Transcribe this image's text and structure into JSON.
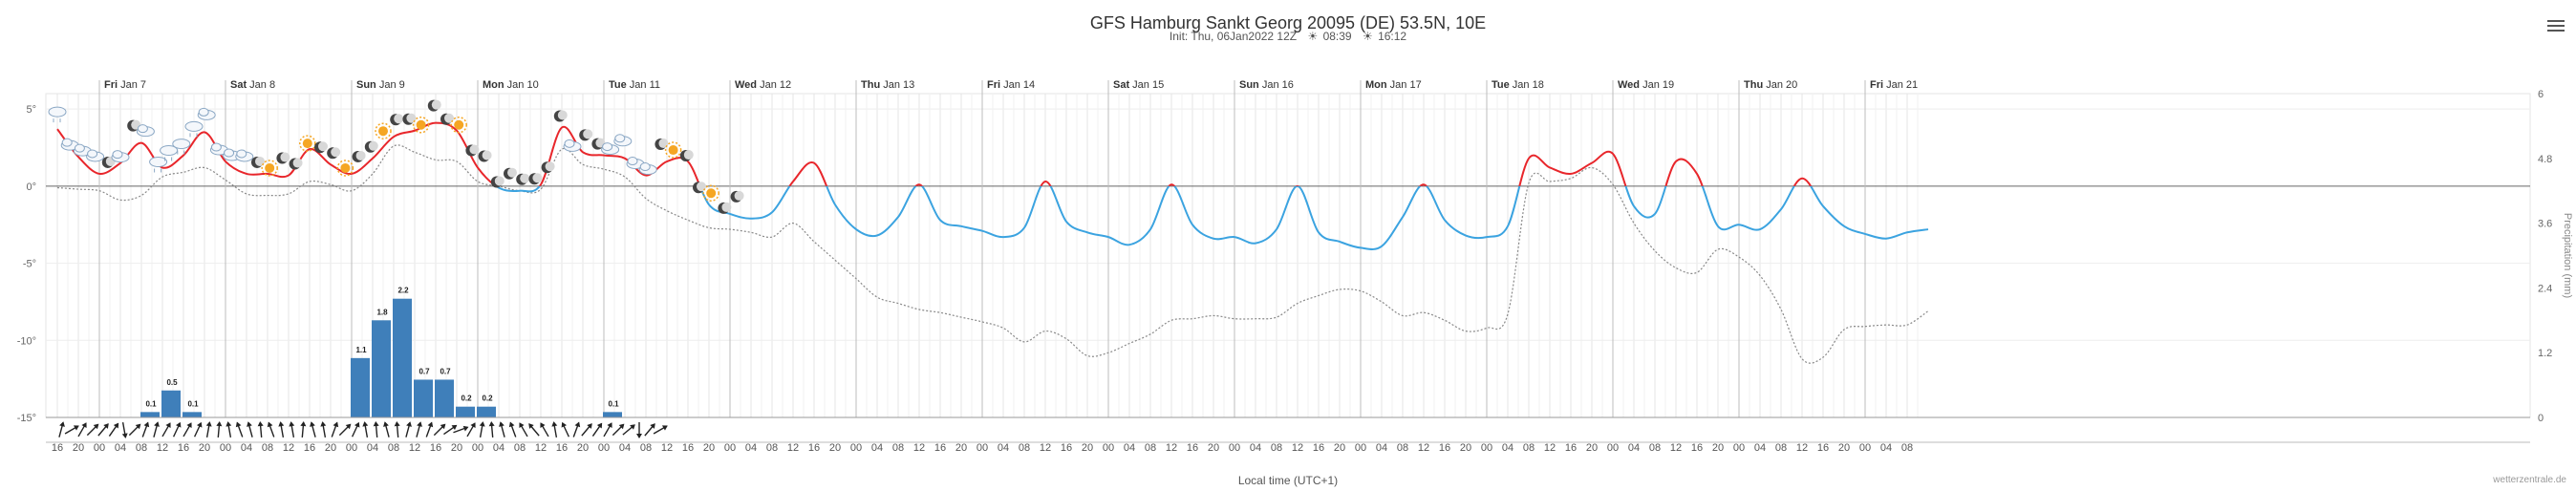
{
  "page": {
    "title": "GFS Hamburg Sankt Georg 20095 (DE) 53.5N, 10E",
    "init_label": "Init: Thu, 06Jan2022 12Z",
    "sunrise": "08:39",
    "sunset": "16:12",
    "xlabel": "Local time (UTC+1)",
    "credit": "wetterzentrale.de",
    "y2label": "Precipitation (mm)"
  },
  "colors": {
    "temp_above": "#e8262b",
    "temp_below": "#3ba3e0",
    "dewpoint": "#888888",
    "precip": "#3f7fba",
    "zero_line": "#666666",
    "grid": "#e4e4e4"
  },
  "chart_data": {
    "type": "line",
    "title": "GFS Hamburg Sankt Georg 20095 (DE) 53.5N, 10E",
    "xlabel": "Local time (UTC+1)",
    "ylabel": "",
    "ylim": [
      -15,
      6
    ],
    "y2lim": [
      0,
      6
    ],
    "yticks": [
      "5°",
      "0°",
      "-5°",
      "-10°",
      "-15°"
    ],
    "y2ticks": [
      "6",
      "4.8",
      "3.6",
      "2.4",
      "1.2",
      "0"
    ],
    "grid": true,
    "start_hour": 16,
    "step_hours": 4,
    "hour_labels": [
      "16",
      "20",
      "00",
      "04",
      "08",
      "12",
      "16",
      "20",
      "00",
      "04",
      "08",
      "12",
      "16",
      "20",
      "00",
      "04",
      "08",
      "12",
      "16",
      "20",
      "00",
      "04",
      "08",
      "12",
      "16",
      "20",
      "00",
      "04",
      "08",
      "12",
      "16",
      "20",
      "00",
      "04",
      "08",
      "12",
      "16",
      "20",
      "00",
      "04",
      "08",
      "12",
      "16",
      "20",
      "00",
      "04",
      "08",
      "12",
      "16",
      "20",
      "00",
      "04",
      "08",
      "12",
      "16",
      "20",
      "00",
      "04",
      "08",
      "12",
      "16",
      "20",
      "00",
      "04",
      "08",
      "12",
      "16",
      "20",
      "00",
      "04",
      "08",
      "12",
      "16",
      "20",
      "00",
      "04",
      "08",
      "12",
      "16",
      "20",
      "00",
      "04",
      "08",
      "12",
      "16",
      "20",
      "00",
      "04",
      "08"
    ],
    "days": [
      {
        "label": "Fri Jan 7",
        "hour_index": 2
      },
      {
        "label": "Sat Jan 8",
        "hour_index": 8
      },
      {
        "label": "Sun Jan 9",
        "hour_index": 14
      },
      {
        "label": "Mon Jan 10",
        "hour_index": 20
      },
      {
        "label": "Tue Jan 11",
        "hour_index": 26
      },
      {
        "label": "Wed Jan 12",
        "hour_index": 32
      },
      {
        "label": "Thu Jan 13",
        "hour_index": 38
      },
      {
        "label": "Fri Jan 14",
        "hour_index": 44
      },
      {
        "label": "Sat Jan 15",
        "hour_index": 50
      },
      {
        "label": "Sun Jan 16",
        "hour_index": 56
      },
      {
        "label": "Mon Jan 17",
        "hour_index": 62
      },
      {
        "label": "Tue Jan 18",
        "hour_index": 68
      },
      {
        "label": "Wed Jan 19",
        "hour_index": 74
      },
      {
        "label": "Thu Jan 20",
        "hour_index": 80
      },
      {
        "label": "Fri Jan 21",
        "hour_index": 86
      }
    ],
    "temperature": [
      [
        0,
        3.7
      ],
      [
        1,
        1.9
      ],
      [
        2,
        0.8
      ],
      [
        3,
        1.5
      ],
      [
        4,
        2.8
      ],
      [
        5,
        1.2
      ],
      [
        6,
        2.0
      ],
      [
        7,
        3.5
      ],
      [
        8,
        1.6
      ],
      [
        9,
        0.8
      ],
      [
        10,
        0.8
      ],
      [
        11,
        0.7
      ],
      [
        12,
        2.4
      ],
      [
        13,
        1.4
      ],
      [
        14,
        0.8
      ],
      [
        15,
        1.8
      ],
      [
        16,
        3.2
      ],
      [
        17,
        3.6
      ],
      [
        18,
        4.1
      ],
      [
        19,
        3.6
      ],
      [
        20,
        1.2
      ],
      [
        21,
        -0.1
      ],
      [
        22,
        -0.3
      ],
      [
        23,
        0.1
      ],
      [
        24,
        3.8
      ],
      [
        25,
        2.2
      ],
      [
        26,
        2.0
      ],
      [
        27,
        1.8
      ],
      [
        28,
        0.7
      ],
      [
        29,
        1.6
      ],
      [
        30,
        1.6
      ],
      [
        31,
        -1.2
      ],
      [
        32,
        -1.8
      ],
      [
        33,
        -2.1
      ],
      [
        34,
        -1.7
      ],
      [
        35,
        0.3
      ],
      [
        36,
        1.5
      ],
      [
        37,
        -1.2
      ],
      [
        38,
        -2.8
      ],
      [
        39,
        -3.2
      ],
      [
        40,
        -2.0
      ],
      [
        41,
        0.1
      ],
      [
        42,
        -2.2
      ],
      [
        43,
        -2.6
      ],
      [
        44,
        -2.9
      ],
      [
        45,
        -3.3
      ],
      [
        46,
        -2.7
      ],
      [
        47,
        0.3
      ],
      [
        48,
        -2.3
      ],
      [
        49,
        -3.0
      ],
      [
        50,
        -3.3
      ],
      [
        51,
        -3.8
      ],
      [
        52,
        -2.8
      ],
      [
        53,
        0.1
      ],
      [
        54,
        -2.5
      ],
      [
        55,
        -3.4
      ],
      [
        56,
        -3.3
      ],
      [
        57,
        -3.7
      ],
      [
        58,
        -2.8
      ],
      [
        59,
        0.0
      ],
      [
        60,
        -3.0
      ],
      [
        61,
        -3.6
      ],
      [
        62,
        -4.0
      ],
      [
        63,
        -3.9
      ],
      [
        64,
        -2.0
      ],
      [
        65,
        0.1
      ],
      [
        66,
        -2.2
      ],
      [
        67,
        -3.2
      ],
      [
        68,
        -3.3
      ],
      [
        69,
        -2.6
      ],
      [
        70,
        1.8
      ],
      [
        71,
        1.2
      ],
      [
        72,
        0.8
      ],
      [
        73,
        1.5
      ],
      [
        74,
        2.1
      ],
      [
        75,
        -1.3
      ],
      [
        76,
        -1.8
      ],
      [
        77,
        1.6
      ],
      [
        78,
        0.8
      ],
      [
        79,
        -2.6
      ],
      [
        80,
        -2.5
      ],
      [
        81,
        -2.8
      ],
      [
        82,
        -1.5
      ],
      [
        83,
        0.5
      ],
      [
        84,
        -1.3
      ],
      [
        85,
        -2.6
      ],
      [
        86,
        -3.1
      ],
      [
        87,
        -3.4
      ],
      [
        88,
        -3.0
      ],
      [
        89,
        -2.8
      ]
    ],
    "dewpoint": [
      [
        0,
        -0.1
      ],
      [
        1,
        -0.2
      ],
      [
        2,
        -0.3
      ],
      [
        3,
        -0.9
      ],
      [
        4,
        -0.6
      ],
      [
        5,
        0.6
      ],
      [
        6,
        0.9
      ],
      [
        7,
        1.2
      ],
      [
        8,
        0.4
      ],
      [
        9,
        -0.5
      ],
      [
        10,
        -0.6
      ],
      [
        11,
        -0.5
      ],
      [
        12,
        0.3
      ],
      [
        13,
        0.1
      ],
      [
        14,
        -0.3
      ],
      [
        15,
        0.8
      ],
      [
        16,
        2.6
      ],
      [
        17,
        2.2
      ],
      [
        18,
        1.7
      ],
      [
        19,
        1.6
      ],
      [
        20,
        0.3
      ],
      [
        21,
        0.0
      ],
      [
        22,
        -0.3
      ],
      [
        23,
        -0.2
      ],
      [
        24,
        2.4
      ],
      [
        25,
        1.4
      ],
      [
        26,
        1.1
      ],
      [
        27,
        0.6
      ],
      [
        28,
        -0.8
      ],
      [
        29,
        -1.6
      ],
      [
        30,
        -2.2
      ],
      [
        31,
        -2.7
      ],
      [
        32,
        -2.8
      ],
      [
        33,
        -3.0
      ],
      [
        34,
        -3.3
      ],
      [
        35,
        -2.4
      ],
      [
        36,
        -3.6
      ],
      [
        37,
        -4.8
      ],
      [
        38,
        -6.0
      ],
      [
        39,
        -7.2
      ],
      [
        40,
        -7.6
      ],
      [
        41,
        -8.0
      ],
      [
        42,
        -8.2
      ],
      [
        43,
        -8.5
      ],
      [
        44,
        -8.8
      ],
      [
        45,
        -9.2
      ],
      [
        46,
        -10.1
      ],
      [
        47,
        -9.4
      ],
      [
        48,
        -9.9
      ],
      [
        49,
        -11.0
      ],
      [
        50,
        -10.8
      ],
      [
        51,
        -10.2
      ],
      [
        52,
        -9.6
      ],
      [
        53,
        -8.7
      ],
      [
        54,
        -8.6
      ],
      [
        55,
        -8.4
      ],
      [
        56,
        -8.6
      ],
      [
        57,
        -8.6
      ],
      [
        58,
        -8.5
      ],
      [
        59,
        -7.6
      ],
      [
        60,
        -7.1
      ],
      [
        61,
        -6.7
      ],
      [
        62,
        -6.8
      ],
      [
        63,
        -7.5
      ],
      [
        64,
        -8.4
      ],
      [
        65,
        -8.2
      ],
      [
        66,
        -8.7
      ],
      [
        67,
        -9.4
      ],
      [
        68,
        -9.2
      ],
      [
        69,
        -8.3
      ],
      [
        70,
        0.2
      ],
      [
        71,
        0.3
      ],
      [
        72,
        0.5
      ],
      [
        73,
        1.2
      ],
      [
        74,
        0.1
      ],
      [
        75,
        -2.4
      ],
      [
        76,
        -4.2
      ],
      [
        77,
        -5.3
      ],
      [
        78,
        -5.6
      ],
      [
        79,
        -4.1
      ],
      [
        80,
        -4.6
      ],
      [
        81,
        -5.8
      ],
      [
        82,
        -8.0
      ],
      [
        83,
        -11.2
      ],
      [
        84,
        -11.1
      ],
      [
        85,
        -9.3
      ],
      [
        86,
        -9.1
      ],
      [
        87,
        -9.0
      ],
      [
        88,
        -9.0
      ],
      [
        89,
        -8.1
      ]
    ],
    "precipitation": [
      {
        "hour_index": 4,
        "value": 0.1
      },
      {
        "hour_index": 5,
        "value": 0.5
      },
      {
        "hour_index": 6,
        "value": 0.1
      },
      {
        "hour_index": 14,
        "value": 1.1
      },
      {
        "hour_index": 15,
        "value": 1.8
      },
      {
        "hour_index": 16,
        "value": 2.2
      },
      {
        "hour_index": 17,
        "value": 0.7
      },
      {
        "hour_index": 18,
        "value": 0.7
      },
      {
        "hour_index": 19,
        "value": 0.2
      },
      {
        "hour_index": 20,
        "value": 0.2
      },
      {
        "hour_index": 26,
        "value": 0.1
      }
    ],
    "weather_symbols": [
      {
        "hour_index": 0,
        "kind": "snow-cloud-icon"
      },
      {
        "hour_index": 0.6,
        "kind": "cloud-icon"
      },
      {
        "hour_index": 1.2,
        "kind": "cloud-icon"
      },
      {
        "hour_index": 1.8,
        "kind": "cloud-icon"
      },
      {
        "hour_index": 2.4,
        "kind": "moon-icon"
      },
      {
        "hour_index": 3.0,
        "kind": "cloud-icon"
      },
      {
        "hour_index": 3.6,
        "kind": "moon-icon"
      },
      {
        "hour_index": 4.2,
        "kind": "cloud-icon"
      },
      {
        "hour_index": 4.8,
        "kind": "snow-cloud-icon"
      },
      {
        "hour_index": 5.3,
        "kind": "snow-cloud-icon"
      },
      {
        "hour_index": 5.9,
        "kind": "snow-cloud-icon"
      },
      {
        "hour_index": 6.5,
        "kind": "snow-cloud-icon"
      },
      {
        "hour_index": 7.1,
        "kind": "cloud-icon"
      },
      {
        "hour_index": 7.7,
        "kind": "cloud-icon"
      },
      {
        "hour_index": 8.3,
        "kind": "cloud-icon"
      },
      {
        "hour_index": 8.9,
        "kind": "cloud-icon"
      },
      {
        "hour_index": 9.5,
        "kind": "moon-icon"
      },
      {
        "hour_index": 10.1,
        "kind": "sun-icon"
      },
      {
        "hour_index": 10.7,
        "kind": "moon-icon"
      },
      {
        "hour_index": 11.3,
        "kind": "moon-icon"
      },
      {
        "hour_index": 11.9,
        "kind": "sun-icon"
      },
      {
        "hour_index": 12.5,
        "kind": "moon-icon"
      },
      {
        "hour_index": 13.1,
        "kind": "moon-icon"
      },
      {
        "hour_index": 13.7,
        "kind": "sun-icon"
      },
      {
        "hour_index": 14.3,
        "kind": "moon-icon"
      },
      {
        "hour_index": 14.9,
        "kind": "moon-icon"
      },
      {
        "hour_index": 15.5,
        "kind": "sun-icon"
      },
      {
        "hour_index": 16.1,
        "kind": "moon-icon"
      },
      {
        "hour_index": 16.7,
        "kind": "moon-icon"
      },
      {
        "hour_index": 17.3,
        "kind": "sun-icon"
      },
      {
        "hour_index": 17.9,
        "kind": "moon-icon"
      },
      {
        "hour_index": 18.5,
        "kind": "moon-icon"
      },
      {
        "hour_index": 19.1,
        "kind": "sun-icon"
      },
      {
        "hour_index": 19.7,
        "kind": "moon-icon"
      },
      {
        "hour_index": 20.3,
        "kind": "moon-icon"
      },
      {
        "hour_index": 20.9,
        "kind": "moon-icon"
      },
      {
        "hour_index": 21.5,
        "kind": "moon-icon"
      },
      {
        "hour_index": 22.1,
        "kind": "moon-icon"
      },
      {
        "hour_index": 22.7,
        "kind": "moon-icon"
      },
      {
        "hour_index": 23.3,
        "kind": "moon-icon"
      },
      {
        "hour_index": 23.9,
        "kind": "moon-icon"
      },
      {
        "hour_index": 24.5,
        "kind": "cloud-icon"
      },
      {
        "hour_index": 25.1,
        "kind": "moon-icon"
      },
      {
        "hour_index": 25.7,
        "kind": "moon-icon"
      },
      {
        "hour_index": 26.3,
        "kind": "cloud-icon"
      },
      {
        "hour_index": 26.9,
        "kind": "cloud-icon"
      },
      {
        "hour_index": 27.5,
        "kind": "cloud-icon"
      },
      {
        "hour_index": 28.1,
        "kind": "cloud-icon"
      },
      {
        "hour_index": 28.7,
        "kind": "moon-icon"
      },
      {
        "hour_index": 29.3,
        "kind": "sun-icon"
      },
      {
        "hour_index": 29.9,
        "kind": "moon-icon"
      },
      {
        "hour_index": 30.5,
        "kind": "moon-icon"
      },
      {
        "hour_index": 31.1,
        "kind": "sun-icon"
      },
      {
        "hour_index": 31.7,
        "kind": "moon-icon"
      },
      {
        "hour_index": 32.3,
        "kind": "moon-icon"
      }
    ],
    "wind_arrows": [
      15,
      60,
      30,
      45,
      40,
      35,
      170,
      45,
      20,
      15,
      30,
      25,
      30,
      25,
      10,
      5,
      350,
      340,
      345,
      355,
      340,
      350,
      350,
      5,
      345,
      350,
      20,
      45,
      25,
      350,
      355,
      345,
      355,
      15,
      15,
      20,
      45,
      55,
      70,
      30,
      10,
      355,
      345,
      340,
      330,
      320,
      330,
      350,
      335,
      20,
      40,
      35,
      30,
      45,
      50,
      180,
      40,
      60
    ]
  }
}
